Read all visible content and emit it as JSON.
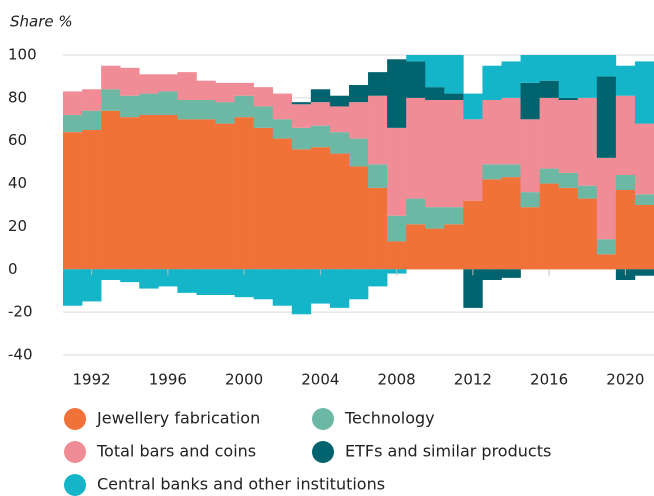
{
  "chart_data": {
    "type": "stacked_bar",
    "y_label": "Share %",
    "x": [
      1991,
      1992,
      1993,
      1994,
      1995,
      1996,
      1997,
      1998,
      1999,
      2000,
      2001,
      2002,
      2003,
      2004,
      2005,
      2006,
      2007,
      2008,
      2009,
      2010,
      2011,
      2012,
      2013,
      2014,
      2015,
      2016,
      2017,
      2018,
      2019,
      2020,
      2021
    ],
    "xlim": [
      1990.5,
      2021.5
    ],
    "xticks": [
      1992,
      1996,
      2000,
      2004,
      2008,
      2012,
      2016,
      2020
    ],
    "ylim": [
      -40,
      100
    ],
    "yticks": [
      -40,
      -20,
      0,
      20,
      40,
      60,
      80,
      100
    ],
    "grid": true,
    "series": [
      {
        "name": "Jewellery fabrication",
        "color": "#f07238",
        "values": [
          64,
          65,
          74,
          71,
          72,
          72,
          70,
          70,
          68,
          71,
          66,
          61,
          56,
          57,
          54,
          48,
          38,
          13,
          21,
          19,
          21,
          32,
          42,
          43,
          29,
          40,
          38,
          33,
          7,
          37,
          30
        ]
      },
      {
        "name": "Technology",
        "color": "#6cb8a4",
        "values": [
          8,
          9,
          10,
          10,
          10,
          11,
          9,
          9,
          10,
          10,
          10,
          9,
          10,
          10,
          10,
          13,
          11,
          12,
          12,
          10,
          8,
          0,
          7,
          6,
          7,
          7,
          7,
          6,
          7,
          7,
          5
        ]
      },
      {
        "name": "Total bars and coins",
        "color": "#f08c96",
        "values": [
          11,
          10,
          11,
          13,
          9,
          8,
          13,
          9,
          9,
          6,
          9,
          12,
          11,
          11,
          12,
          17,
          32,
          41,
          47,
          50,
          50,
          38,
          30,
          31,
          34,
          33,
          34,
          41,
          38,
          37,
          33
        ]
      },
      {
        "name": "ETFs and similar products",
        "color": "#00636e",
        "values": [
          0,
          0,
          0,
          0,
          0,
          0,
          0,
          0,
          0,
          0,
          0,
          0,
          1,
          6,
          5,
          8,
          11,
          32,
          17,
          6,
          3,
          -18,
          -5,
          -4,
          17,
          8,
          1,
          0,
          38,
          -5,
          -3
        ]
      },
      {
        "name": "Central banks and other institutions",
        "color": "#14b5c8",
        "values": [
          -17,
          -15,
          -5,
          -6,
          -9,
          -8,
          -11,
          -12,
          -12,
          -13,
          -14,
          -17,
          -21,
          -16,
          -18,
          -14,
          -8,
          -2,
          3,
          15,
          18,
          12,
          16,
          17,
          13,
          12,
          20,
          20,
          10,
          14,
          29
        ]
      }
    ]
  }
}
